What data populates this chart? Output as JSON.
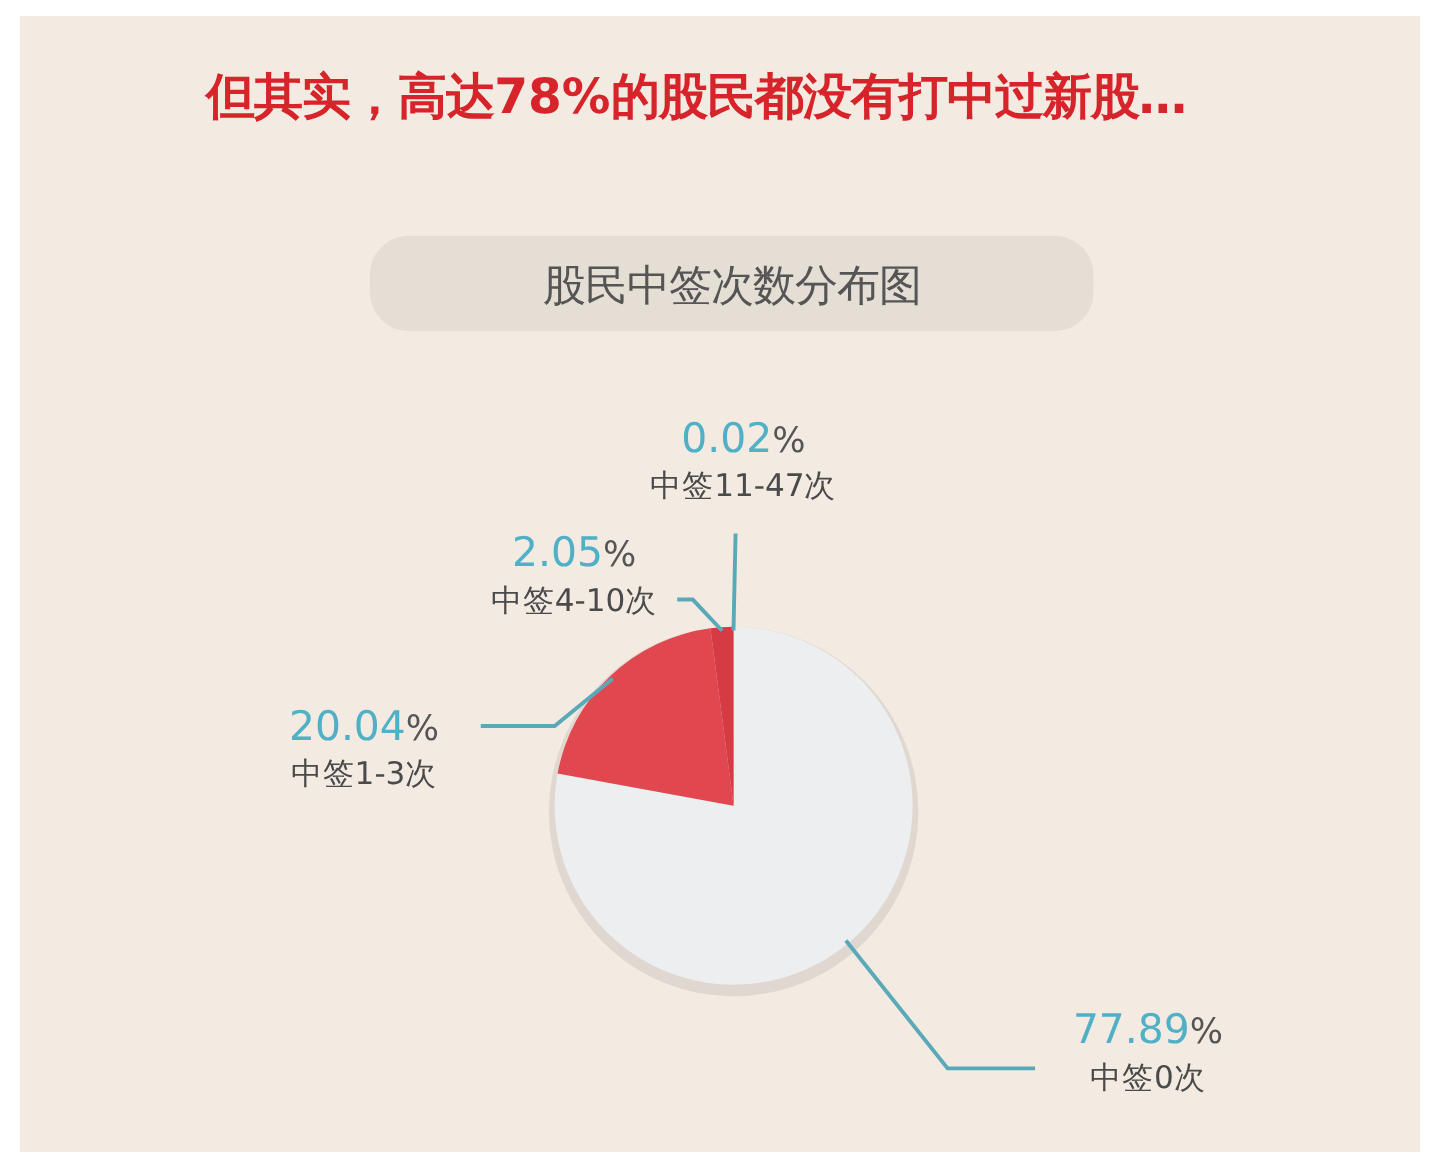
{
  "chart_data": {
    "type": "pie",
    "title": "但其实，高达78%的股民都没有打中过新股…",
    "subtitle": "股民中签次数分布图",
    "categories": [
      "中签0次",
      "中签1-3次",
      "中签4-10次",
      "中签11-47次"
    ],
    "values": [
      77.89,
      20.04,
      2.05,
      0.02
    ],
    "value_labels": [
      "77.89%",
      "20.04%",
      "2.05%",
      "0.02%"
    ],
    "colors": [
      "#eceeef",
      "#e1474f",
      "#d63a42",
      "#b3212a"
    ]
  }
}
